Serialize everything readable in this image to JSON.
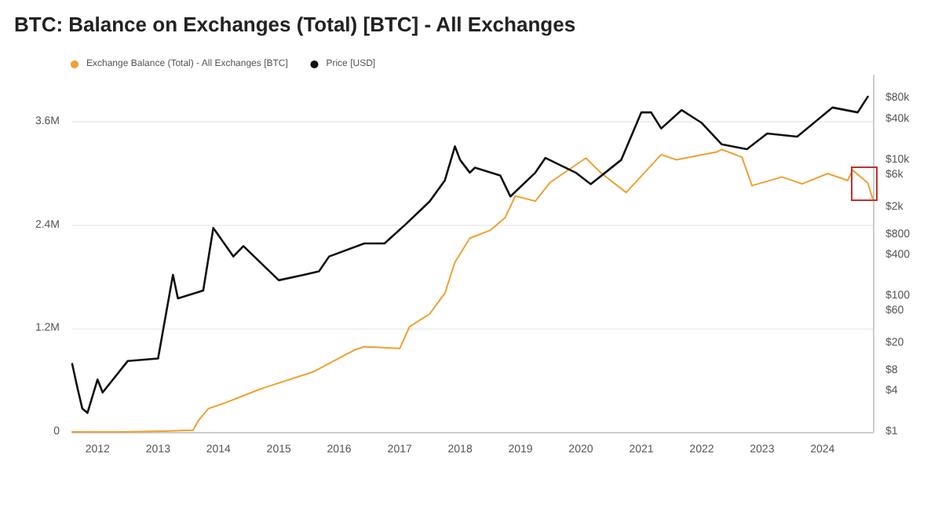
{
  "chart_data": {
    "type": "line",
    "title": "BTC: Balance on Exchanges (Total) [BTC] - All Exchanges",
    "xlim": [
      "2011-08",
      "2024-11"
    ],
    "xticks": [
      "2012",
      "2013",
      "2014",
      "2015",
      "2016",
      "2017",
      "2018",
      "2019",
      "2020",
      "2021",
      "2022",
      "2023",
      "2024"
    ],
    "ylim": [
      0,
      4140000
    ],
    "yticks": [
      0,
      {
        "value": 1200000,
        "label": "1.2M"
      },
      {
        "value": 2400000,
        "label": "2.4M"
      },
      {
        "value": 3600000,
        "label": "3.6M"
      }
    ],
    "y2lim": [
      1,
      175000
    ],
    "log": "y2",
    "y2ticks": [
      {
        "value": 1,
        "label": "$1"
      },
      {
        "value": 4,
        "label": "$4"
      },
      {
        "value": 8,
        "label": "$8"
      },
      {
        "value": 20,
        "label": "$20"
      },
      {
        "value": 60,
        "label": "$60"
      },
      {
        "value": 100,
        "label": "$100"
      },
      {
        "value": 400,
        "label": "$400"
      },
      {
        "value": 800,
        "label": "$800"
      },
      {
        "value": 2000,
        "label": "$2k"
      },
      {
        "value": 6000,
        "label": "$6k"
      },
      {
        "value": 10000,
        "label": "$10k"
      },
      {
        "value": 40000,
        "label": "$40k"
      },
      {
        "value": 80000,
        "label": "$80k"
      }
    ],
    "grid": "y",
    "legend": "top left",
    "marker": "none",
    "line_style": "solid",
    "series": [
      {
        "name": "Exchange Balance (Total) - All Exchanges [BTC]",
        "color": "#f0a030",
        "x": [
          "2011-08",
          "2012-06",
          "2013-02",
          "2013-08",
          "2013-09",
          "2013-11",
          "2014-02",
          "2014-09",
          "2014-11",
          "2015-08",
          "2016-04",
          "2016-06",
          "2017-01",
          "2017-03",
          "2017-07",
          "2017-10",
          "2017-12",
          "2018-03",
          "2018-07",
          "2018-10",
          "2018-12",
          "2019-04",
          "2019-07",
          "2020-02",
          "2020-05",
          "2020-10",
          "2021-05",
          "2021-08",
          "2022-04",
          "2022-05",
          "2022-09",
          "2022-11",
          "2023-05",
          "2023-09",
          "2024-02",
          "2024-06",
          "2024-07",
          "2024-10",
          "2024-11"
        ],
        "values": [
          0,
          0,
          10000,
          20000,
          130000,
          270000,
          330000,
          490000,
          530000,
          700000,
          950000,
          990000,
          970000,
          1220000,
          1370000,
          1610000,
          1970000,
          2250000,
          2340000,
          2490000,
          2740000,
          2680000,
          2900000,
          3180000,
          3010000,
          2780000,
          3220000,
          3160000,
          3250000,
          3280000,
          3190000,
          2860000,
          2960000,
          2880000,
          3000000,
          2920000,
          3040000,
          2890000,
          2700000
        ]
      },
      {
        "name": "Price [USD]",
        "color": "#111111",
        "axis": "y2",
        "x": [
          "2011-08",
          "2011-09",
          "2011-10",
          "2011-11",
          "2012-01",
          "2012-02",
          "2012-07",
          "2013-01",
          "2013-04",
          "2013-05",
          "2013-10",
          "2013-12",
          "2014-04",
          "2014-06",
          "2015-01",
          "2015-06",
          "2015-09",
          "2015-11",
          "2016-06",
          "2016-10",
          "2017-02",
          "2017-07",
          "2017-10",
          "2017-12",
          "2018-01",
          "2018-03",
          "2018-04",
          "2018-09",
          "2018-11",
          "2019-04",
          "2019-06",
          "2019-12",
          "2020-03",
          "2020-09",
          "2021-01",
          "2021-03",
          "2021-05",
          "2021-09",
          "2022-01",
          "2022-05",
          "2022-10",
          "2023-02",
          "2023-08",
          "2024-03",
          "2024-08",
          "2024-10"
        ],
        "values": [
          10,
          4.5,
          2.2,
          1.9,
          5.9,
          3.8,
          11,
          12,
          204,
          92,
          120,
          1000,
          380,
          540,
          170,
          204,
          230,
          380,
          590,
          590,
          1100,
          2450,
          5000,
          15800,
          10000,
          6500,
          7700,
          5900,
          2900,
          6500,
          10700,
          6500,
          4400,
          10000,
          50000,
          50000,
          29000,
          54000,
          35000,
          17000,
          14400,
          24500,
          22000,
          59000,
          50000,
          85000
        ]
      }
    ]
  }
}
